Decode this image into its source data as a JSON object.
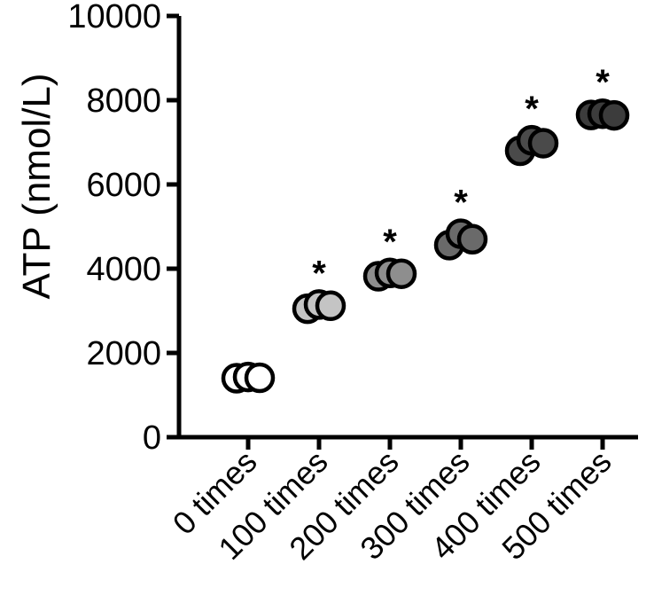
{
  "chart_data": {
    "type": "scatter",
    "title": "",
    "ylabel": "ATP (nmol/L)",
    "xlabel": "",
    "ylim": [
      0,
      10000
    ],
    "yticks": [
      0,
      2000,
      4000,
      6000,
      8000,
      10000
    ],
    "grid": false,
    "categories": [
      "0 times",
      "100 times",
      "200 times",
      "300 times",
      "400 times",
      "500 times"
    ],
    "colors": [
      "#ffffff",
      "#c4c4c4",
      "#8e8e8e",
      "#6a6a6a",
      "#4a4a4a",
      "#3c3c3c"
    ],
    "significance": [
      "",
      "*",
      "*",
      "*",
      "*",
      "*"
    ],
    "groups": [
      {
        "category": "0 times",
        "values": [
          1400,
          1430,
          1410
        ]
      },
      {
        "category": "100 times",
        "values": [
          3050,
          3150,
          3120
        ]
      },
      {
        "category": "200 times",
        "values": [
          3820,
          3900,
          3880
        ]
      },
      {
        "category": "300 times",
        "values": [
          4560,
          4830,
          4700
        ]
      },
      {
        "category": "400 times",
        "values": [
          6800,
          7050,
          6980
        ]
      },
      {
        "category": "500 times",
        "values": [
          7650,
          7680,
          7640
        ]
      }
    ]
  }
}
